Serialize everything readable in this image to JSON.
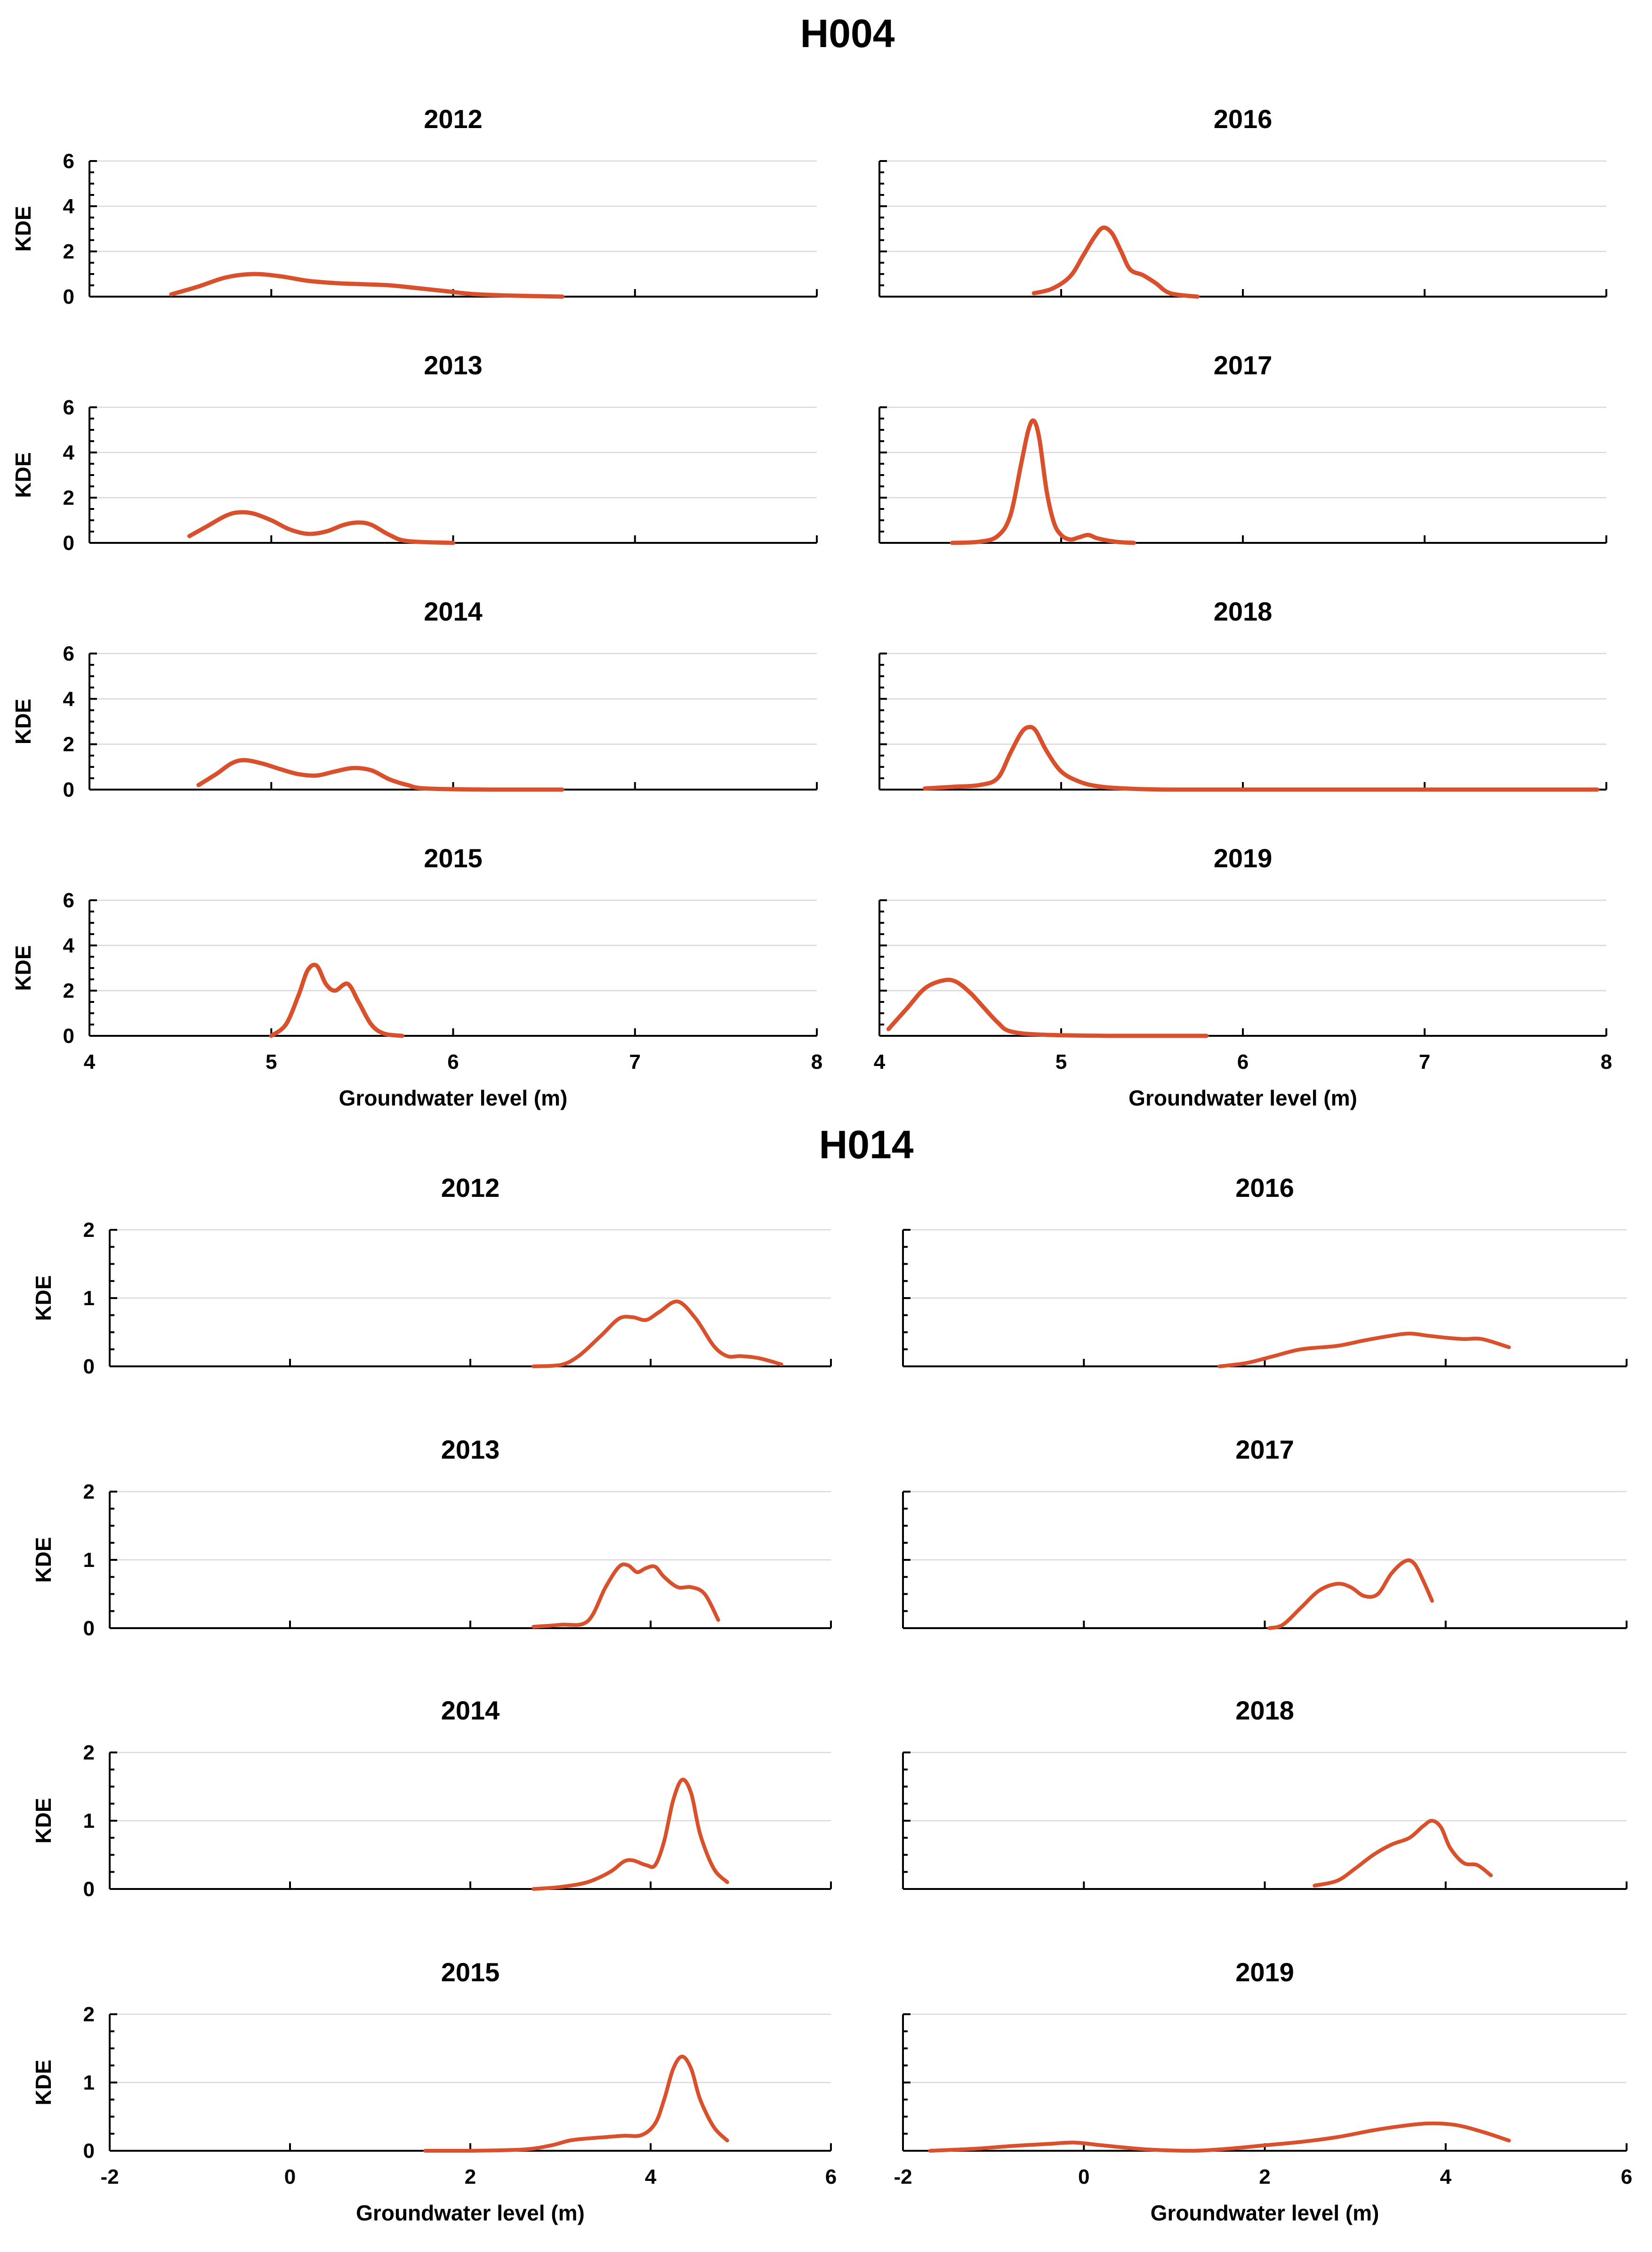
{
  "figure": {
    "curve_color": "#D9512C",
    "groups": [
      {
        "title": "H004",
        "x_label": "Groundwater level (m)",
        "y_label": "KDE"
      },
      {
        "title": "H014",
        "x_label": "Groundwater level (m)",
        "y_label": "KDE"
      }
    ]
  },
  "chart_data": [
    {
      "type": "line",
      "group": "H004",
      "title": "2012",
      "xlabel": "",
      "ylabel": "KDE",
      "xlim": [
        4,
        8
      ],
      "ylim": [
        0,
        6
      ],
      "xticks": [],
      "yticks": [
        0,
        2,
        4,
        6
      ],
      "grid": "horizontal",
      "x": [
        4.45,
        4.6,
        4.75,
        4.9,
        5.05,
        5.2,
        5.35,
        5.5,
        5.65,
        5.8,
        5.95,
        6.1,
        6.3,
        6.6
      ],
      "y": [
        0.1,
        0.45,
        0.85,
        1.0,
        0.9,
        0.7,
        0.6,
        0.55,
        0.5,
        0.38,
        0.25,
        0.12,
        0.05,
        0.0
      ]
    },
    {
      "type": "line",
      "group": "H004",
      "title": "2016",
      "xlabel": "",
      "ylabel": "",
      "xlim": [
        4,
        8
      ],
      "ylim": [
        0,
        6
      ],
      "xticks": [],
      "yticks": [],
      "grid": "horizontal",
      "x": [
        4.85,
        4.95,
        5.05,
        5.12,
        5.18,
        5.23,
        5.28,
        5.33,
        5.38,
        5.45,
        5.52,
        5.6,
        5.75
      ],
      "y": [
        0.15,
        0.35,
        0.9,
        1.8,
        2.6,
        3.05,
        2.8,
        2.0,
        1.2,
        0.95,
        0.6,
        0.15,
        0.0
      ]
    },
    {
      "type": "line",
      "group": "H004",
      "title": "2013",
      "xlabel": "",
      "ylabel": "KDE",
      "xlim": [
        4,
        8
      ],
      "ylim": [
        0,
        6
      ],
      "xticks": [],
      "yticks": [
        0,
        2,
        4,
        6
      ],
      "grid": "horizontal",
      "x": [
        4.55,
        4.65,
        4.75,
        4.82,
        4.9,
        5.0,
        5.1,
        5.2,
        5.3,
        5.4,
        5.48,
        5.55,
        5.65,
        5.75,
        6.0
      ],
      "y": [
        0.3,
        0.75,
        1.2,
        1.35,
        1.3,
        1.0,
        0.6,
        0.4,
        0.5,
        0.8,
        0.9,
        0.8,
        0.35,
        0.08,
        0.0
      ]
    },
    {
      "type": "line",
      "group": "H004",
      "title": "2017",
      "xlabel": "",
      "ylabel": "",
      "xlim": [
        4,
        8
      ],
      "ylim": [
        0,
        6
      ],
      "xticks": [],
      "yticks": [],
      "grid": "horizontal",
      "x": [
        4.4,
        4.55,
        4.65,
        4.72,
        4.78,
        4.82,
        4.85,
        4.88,
        4.92,
        4.96,
        5.0,
        5.05,
        5.1,
        5.15,
        5.2,
        5.3,
        5.4
      ],
      "y": [
        0.0,
        0.05,
        0.3,
        1.2,
        3.5,
        5.0,
        5.4,
        4.6,
        2.3,
        0.9,
        0.35,
        0.15,
        0.25,
        0.35,
        0.2,
        0.05,
        0.0
      ]
    },
    {
      "type": "line",
      "group": "H004",
      "title": "2014",
      "xlabel": "",
      "ylabel": "KDE",
      "xlim": [
        4,
        8
      ],
      "ylim": [
        0,
        6
      ],
      "xticks": [],
      "yticks": [
        0,
        2,
        4,
        6
      ],
      "grid": "horizontal",
      "x": [
        4.6,
        4.7,
        4.78,
        4.85,
        4.95,
        5.05,
        5.15,
        5.25,
        5.35,
        5.45,
        5.55,
        5.65,
        5.75,
        5.85,
        6.2,
        6.6
      ],
      "y": [
        0.2,
        0.7,
        1.15,
        1.3,
        1.15,
        0.9,
        0.68,
        0.62,
        0.8,
        0.95,
        0.85,
        0.45,
        0.2,
        0.05,
        0.0,
        0.0
      ]
    },
    {
      "type": "line",
      "group": "H004",
      "title": "2018",
      "xlabel": "",
      "ylabel": "",
      "xlim": [
        4,
        8
      ],
      "ylim": [
        0,
        6
      ],
      "xticks": [],
      "yticks": [],
      "grid": "horizontal",
      "x": [
        4.25,
        4.4,
        4.55,
        4.65,
        4.72,
        4.78,
        4.82,
        4.86,
        4.92,
        5.0,
        5.1,
        5.2,
        5.35,
        5.6,
        6.2,
        7.95
      ],
      "y": [
        0.05,
        0.12,
        0.2,
        0.5,
        1.6,
        2.5,
        2.75,
        2.6,
        1.7,
        0.8,
        0.35,
        0.15,
        0.05,
        0.0,
        0.0,
        0.0
      ]
    },
    {
      "type": "line",
      "group": "H004",
      "title": "2015",
      "xlabel": "Groundwater level (m)",
      "ylabel": "KDE",
      "xlim": [
        4,
        8
      ],
      "ylim": [
        0,
        6
      ],
      "xticks": [
        4,
        5,
        6,
        7,
        8
      ],
      "yticks": [
        0,
        2,
        4,
        6
      ],
      "grid": "horizontal",
      "x": [
        5.0,
        5.08,
        5.15,
        5.2,
        5.25,
        5.3,
        5.35,
        5.42,
        5.48,
        5.55,
        5.62,
        5.72
      ],
      "y": [
        0.0,
        0.5,
        1.8,
        2.9,
        3.1,
        2.3,
        2.0,
        2.3,
        1.5,
        0.5,
        0.1,
        0.0
      ]
    },
    {
      "type": "line",
      "group": "H004",
      "title": "2019",
      "xlabel": "Groundwater level (m)",
      "ylabel": "",
      "xlim": [
        4,
        8
      ],
      "ylim": [
        0,
        6
      ],
      "xticks": [
        4,
        5,
        6,
        7,
        8
      ],
      "yticks": [],
      "grid": "horizontal",
      "x": [
        4.05,
        4.15,
        4.25,
        4.35,
        4.42,
        4.5,
        4.58,
        4.65,
        4.72,
        4.9,
        5.3,
        5.8
      ],
      "y": [
        0.3,
        1.2,
        2.1,
        2.45,
        2.4,
        1.9,
        1.2,
        0.6,
        0.2,
        0.05,
        0.0,
        0.0
      ]
    },
    {
      "type": "line",
      "group": "H014",
      "title": "2012",
      "xlabel": "",
      "ylabel": "KDE",
      "xlim": [
        -2,
        6
      ],
      "ylim": [
        0,
        2
      ],
      "xticks": [],
      "yticks": [
        0,
        1,
        2
      ],
      "grid": "horizontal",
      "x": [
        2.7,
        3.0,
        3.2,
        3.45,
        3.65,
        3.8,
        3.95,
        4.1,
        4.3,
        4.5,
        4.7,
        4.85,
        5.0,
        5.2,
        5.45
      ],
      "y": [
        0.0,
        0.02,
        0.15,
        0.45,
        0.7,
        0.72,
        0.68,
        0.8,
        0.95,
        0.7,
        0.3,
        0.15,
        0.15,
        0.12,
        0.03
      ]
    },
    {
      "type": "line",
      "group": "H014",
      "title": "2016",
      "xlabel": "",
      "ylabel": "",
      "xlim": [
        -2,
        6
      ],
      "ylim": [
        0,
        2
      ],
      "xticks": [],
      "yticks": [],
      "grid": "horizontal",
      "x": [
        1.5,
        1.8,
        2.1,
        2.4,
        2.8,
        3.1,
        3.4,
        3.6,
        3.8,
        4.0,
        4.2,
        4.4,
        4.7
      ],
      "y": [
        0.0,
        0.05,
        0.15,
        0.25,
        0.3,
        0.38,
        0.45,
        0.48,
        0.45,
        0.42,
        0.4,
        0.4,
        0.28
      ]
    },
    {
      "type": "line",
      "group": "H014",
      "title": "2013",
      "xlabel": "",
      "ylabel": "KDE",
      "xlim": [
        -2,
        6
      ],
      "ylim": [
        0,
        2
      ],
      "xticks": [],
      "yticks": [
        0,
        1,
        2
      ],
      "grid": "horizontal",
      "x": [
        2.7,
        3.0,
        3.3,
        3.5,
        3.65,
        3.75,
        3.85,
        3.95,
        4.05,
        4.15,
        4.3,
        4.45,
        4.6,
        4.75
      ],
      "y": [
        0.02,
        0.05,
        0.1,
        0.6,
        0.9,
        0.92,
        0.82,
        0.88,
        0.9,
        0.75,
        0.6,
        0.6,
        0.5,
        0.12
      ]
    },
    {
      "type": "line",
      "group": "H014",
      "title": "2017",
      "xlabel": "",
      "ylabel": "",
      "xlim": [
        -2,
        6
      ],
      "ylim": [
        0,
        2
      ],
      "xticks": [],
      "yticks": [],
      "grid": "horizontal",
      "x": [
        2.05,
        2.2,
        2.4,
        2.6,
        2.8,
        2.95,
        3.1,
        3.25,
        3.4,
        3.55,
        3.65,
        3.75,
        3.85
      ],
      "y": [
        0.0,
        0.05,
        0.3,
        0.55,
        0.65,
        0.6,
        0.47,
        0.5,
        0.8,
        0.98,
        0.95,
        0.7,
        0.4
      ]
    },
    {
      "type": "line",
      "group": "H014",
      "title": "2014",
      "xlabel": "",
      "ylabel": "KDE",
      "xlim": [
        -2,
        6
      ],
      "ylim": [
        0,
        2
      ],
      "xticks": [],
      "yticks": [
        0,
        1,
        2
      ],
      "grid": "horizontal",
      "x": [
        2.7,
        3.0,
        3.3,
        3.55,
        3.7,
        3.8,
        3.95,
        4.05,
        4.15,
        4.25,
        4.35,
        4.45,
        4.55,
        4.7,
        4.85
      ],
      "y": [
        0.0,
        0.03,
        0.1,
        0.25,
        0.4,
        0.42,
        0.35,
        0.35,
        0.7,
        1.3,
        1.6,
        1.4,
        0.8,
        0.3,
        0.1
      ]
    },
    {
      "type": "line",
      "group": "H014",
      "title": "2018",
      "xlabel": "",
      "ylabel": "",
      "xlim": [
        -2,
        6
      ],
      "ylim": [
        0,
        2
      ],
      "xticks": [],
      "yticks": [],
      "grid": "horizontal",
      "x": [
        2.55,
        2.8,
        3.0,
        3.2,
        3.4,
        3.6,
        3.75,
        3.85,
        3.95,
        4.05,
        4.2,
        4.35,
        4.5
      ],
      "y": [
        0.05,
        0.12,
        0.3,
        0.5,
        0.65,
        0.75,
        0.92,
        1.0,
        0.9,
        0.6,
        0.38,
        0.35,
        0.2
      ]
    },
    {
      "type": "line",
      "group": "H014",
      "title": "2015",
      "xlabel": "Groundwater level (m)",
      "ylabel": "KDE",
      "xlim": [
        -2,
        6
      ],
      "ylim": [
        0,
        2
      ],
      "xticks": [
        -2,
        0,
        2,
        4,
        6
      ],
      "yticks": [
        0,
        1,
        2
      ],
      "grid": "horizontal",
      "x": [
        1.5,
        2.0,
        2.6,
        2.9,
        3.1,
        3.3,
        3.5,
        3.7,
        3.9,
        4.05,
        4.15,
        4.25,
        4.35,
        4.45,
        4.55,
        4.7,
        4.85
      ],
      "y": [
        0.0,
        0.0,
        0.02,
        0.08,
        0.15,
        0.18,
        0.2,
        0.22,
        0.23,
        0.4,
        0.75,
        1.2,
        1.38,
        1.2,
        0.75,
        0.35,
        0.15
      ]
    },
    {
      "type": "line",
      "group": "H014",
      "title": "2019",
      "xlabel": "Groundwater level (m)",
      "ylabel": "",
      "xlim": [
        -2,
        6
      ],
      "ylim": [
        0,
        2
      ],
      "xticks": [
        -2,
        0,
        2,
        4,
        6
      ],
      "yticks": [],
      "grid": "horizontal",
      "x": [
        -1.7,
        -1.2,
        -0.8,
        -0.4,
        -0.1,
        0.2,
        0.7,
        1.2,
        1.6,
        2.0,
        2.4,
        2.8,
        3.2,
        3.5,
        3.8,
        4.1,
        4.4,
        4.7
      ],
      "y": [
        0.0,
        0.03,
        0.07,
        0.1,
        0.12,
        0.08,
        0.02,
        0.0,
        0.03,
        0.08,
        0.13,
        0.2,
        0.3,
        0.36,
        0.4,
        0.38,
        0.28,
        0.15
      ]
    }
  ]
}
